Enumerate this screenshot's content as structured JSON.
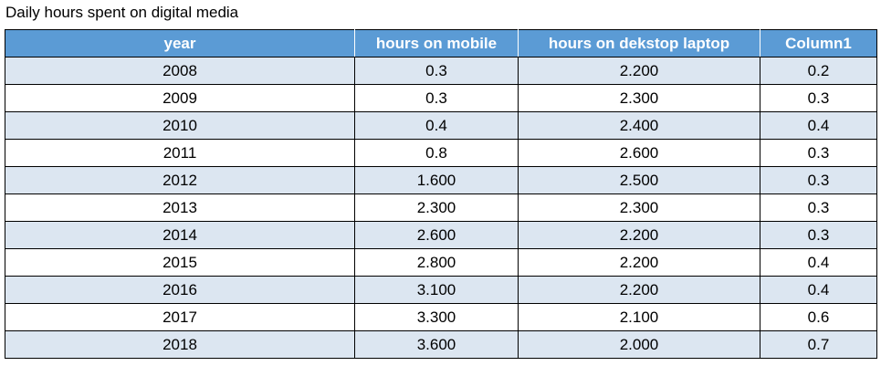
{
  "caption": "Daily hours spent on digital media",
  "colors": {
    "header_bg": "#5b9bd5",
    "header_text": "#ffffff",
    "band_bg": "#dce6f1",
    "plain_bg": "#ffffff",
    "border": "#000000"
  },
  "chart_data": {
    "type": "table",
    "title": "Daily hours spent on digital media",
    "columns": [
      "year",
      "hours on mobile",
      "hours on dekstop laptop",
      "Column1"
    ],
    "rows": [
      [
        "2008",
        "0.3",
        "2.200",
        "0.2"
      ],
      [
        "2009",
        "0.3",
        "2.300",
        "0.3"
      ],
      [
        "2010",
        "0.4",
        "2.400",
        "0.4"
      ],
      [
        "2011",
        "0.8",
        "2.600",
        "0.3"
      ],
      [
        "2012",
        "1.600",
        "2.500",
        "0.3"
      ],
      [
        "2013",
        "2.300",
        "2.300",
        "0.3"
      ],
      [
        "2014",
        "2.600",
        "2.200",
        "0.3"
      ],
      [
        "2015",
        "2.800",
        "2.200",
        "0.4"
      ],
      [
        "2016",
        "3.100",
        "2.200",
        "0.4"
      ],
      [
        "2017",
        "3.300",
        "2.100",
        "0.6"
      ],
      [
        "2018",
        "3.600",
        "2.000",
        "0.7"
      ]
    ]
  }
}
